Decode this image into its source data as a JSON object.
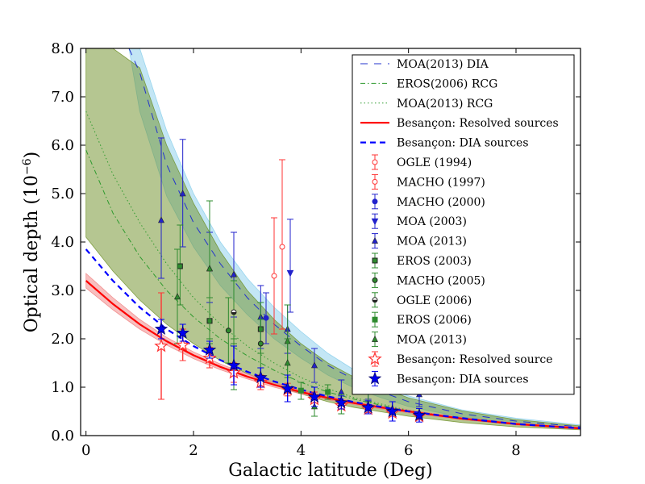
{
  "chart_data": {
    "type": "scatter",
    "title": "",
    "xlabel": "Galactic latitude (Deg)",
    "ylabel": "Optical depth (10",
    "ylabel_exponent": "−6",
    "ylabel_close": ")",
    "xlim": [
      -0.1,
      9.2
    ],
    "ylim": [
      0.0,
      8.0
    ],
    "x_ticks": [
      0,
      2,
      4,
      6,
      8
    ],
    "x_tick_labels": [
      "0",
      "2",
      "4",
      "6",
      "8"
    ],
    "y_ticks": [
      0,
      1,
      2,
      3,
      4,
      5,
      6,
      7,
      8
    ],
    "y_tick_labels": [
      "0.0",
      "1.0",
      "2.0",
      "3.0",
      "4.0",
      "5.0",
      "6.0",
      "7.0",
      "8.0"
    ],
    "grid": false,
    "legend_position": "top-right",
    "model_curves": [
      {
        "name": "MOA(2013) DIA",
        "style": "sparse-dash",
        "color": "#2233cc",
        "x": [
          0.8,
          1.0,
          1.5,
          2.0,
          2.5,
          3.0,
          3.5,
          4.0,
          4.5,
          5.0,
          5.5,
          6.0,
          7.0,
          8.0,
          9.2
        ],
        "y": [
          8.0,
          7.5,
          5.6,
          4.4,
          3.55,
          2.85,
          2.3,
          1.85,
          1.45,
          1.15,
          0.9,
          0.7,
          0.45,
          0.3,
          0.18
        ],
        "band_lo": [
          8.0,
          6.7,
          4.95,
          3.9,
          3.1,
          2.5,
          2.0,
          1.6,
          1.25,
          0.98,
          0.78,
          0.6,
          0.38,
          0.25,
          0.14
        ],
        "band_hi": [
          8.0,
          8.0,
          6.3,
          5.0,
          4.0,
          3.25,
          2.65,
          2.15,
          1.7,
          1.35,
          1.05,
          0.82,
          0.53,
          0.36,
          0.22
        ],
        "band_color": "#87ceeb"
      },
      {
        "name": "EROS(2006) RCG",
        "style": "dash-dot",
        "color": "#2e9a2e",
        "x": [
          0,
          0.5,
          1.0,
          1.5,
          2.0,
          2.5,
          3.0,
          3.5,
          4.0,
          4.5,
          5.0,
          6.0,
          7.0,
          8.0,
          9.2
        ],
        "y": [
          5.9,
          4.6,
          3.7,
          3.0,
          2.45,
          2.0,
          1.65,
          1.35,
          1.1,
          0.9,
          0.75,
          0.5,
          0.34,
          0.23,
          0.15
        ],
        "band_lo": [
          4.1,
          3.4,
          2.8,
          2.3,
          1.9,
          1.55,
          1.28,
          1.05,
          0.86,
          0.7,
          0.58,
          0.4,
          0.27,
          0.18,
          0.12
        ],
        "band_hi": [
          8.0,
          8.0,
          7.6,
          6.0,
          4.8,
          3.8,
          3.0,
          2.4,
          1.9,
          1.5,
          1.2,
          0.78,
          0.51,
          0.33,
          0.2
        ],
        "band_color": "#6b8e23"
      },
      {
        "name": "MOA(2013) RCG",
        "style": "dotted",
        "color": "#2e9a2e",
        "x": [
          0,
          0.5,
          1.0,
          1.5,
          2.0,
          2.5,
          3.0,
          3.5,
          4.0,
          4.5,
          5.0,
          6.0,
          7.0,
          8.0,
          9.2
        ],
        "y": [
          6.7,
          5.4,
          4.4,
          3.55,
          2.85,
          2.3,
          1.85,
          1.5,
          1.2,
          0.97,
          0.78,
          0.52,
          0.35,
          0.23,
          0.15
        ]
      },
      {
        "name": "Besançon: Resolved sources",
        "style": "solid",
        "color": "#ff0000",
        "x": [
          0,
          0.5,
          1.0,
          1.5,
          2.0,
          2.5,
          3.0,
          3.5,
          4.0,
          4.5,
          5.0,
          5.5,
          6.0,
          7.0,
          8.0,
          9.2
        ],
        "y": [
          3.2,
          2.72,
          2.3,
          1.95,
          1.66,
          1.42,
          1.22,
          1.05,
          0.9,
          0.78,
          0.67,
          0.58,
          0.5,
          0.35,
          0.24,
          0.15
        ],
        "band_lo": [
          3.05,
          2.6,
          2.2,
          1.87,
          1.59,
          1.36,
          1.17,
          1.0,
          0.86,
          0.74,
          0.64,
          0.55,
          0.47,
          0.33,
          0.22,
          0.13
        ],
        "band_hi": [
          3.35,
          2.85,
          2.4,
          2.03,
          1.73,
          1.48,
          1.27,
          1.1,
          0.94,
          0.82,
          0.7,
          0.61,
          0.53,
          0.37,
          0.26,
          0.17
        ],
        "band_color": "#f08080"
      },
      {
        "name": "Besançon: DIA sources",
        "style": "dashed",
        "color": "#0000ff",
        "x": [
          0,
          0.5,
          1.0,
          1.5,
          2.0,
          2.5,
          3.0,
          3.5,
          4.0,
          4.5,
          5.0,
          5.5,
          6.0,
          7.0,
          8.0,
          9.2
        ],
        "y": [
          3.85,
          3.2,
          2.65,
          2.2,
          1.85,
          1.56,
          1.32,
          1.12,
          0.95,
          0.81,
          0.69,
          0.59,
          0.5,
          0.36,
          0.24,
          0.15
        ]
      }
    ],
    "observations": [
      {
        "name": "OGLE (1994)",
        "marker": "circle-open",
        "color": "#ff3333",
        "points": [
          {
            "x": 3.5,
            "y": 3.3,
            "lo": 2.1,
            "hi": 4.5
          }
        ]
      },
      {
        "name": "MACHO (1997)",
        "marker": "circle-open",
        "color": "#ff3333",
        "points": [
          {
            "x": 3.65,
            "y": 3.9,
            "lo": 2.2,
            "hi": 5.7
          }
        ]
      },
      {
        "name": "MACHO (2000)",
        "marker": "circle-filled",
        "color": "#2222cc",
        "points": [
          {
            "x": 3.35,
            "y": 2.43,
            "lo": 1.9,
            "hi": 2.95
          }
        ]
      },
      {
        "name": "MOA (2003)",
        "marker": "triangle-down",
        "color": "#2222cc",
        "points": [
          {
            "x": 3.8,
            "y": 3.36,
            "lo": 2.55,
            "hi": 4.47
          }
        ]
      },
      {
        "name": "MOA (2013)",
        "marker": "triangle-up",
        "color": "#2222cc",
        "points": [
          {
            "x": 1.4,
            "y": 4.45,
            "lo": 3.25,
            "hi": 6.15
          },
          {
            "x": 1.8,
            "y": 5.0,
            "lo": 3.9,
            "hi": 6.12
          },
          {
            "x": 2.3,
            "y": 3.45,
            "lo": 2.75,
            "hi": 4.2
          },
          {
            "x": 2.75,
            "y": 3.33,
            "lo": 2.45,
            "hi": 4.2
          },
          {
            "x": 3.25,
            "y": 2.45,
            "lo": 1.8,
            "hi": 3.1
          },
          {
            "x": 3.75,
            "y": 2.2,
            "lo": 1.7,
            "hi": 2.7
          },
          {
            "x": 4.25,
            "y": 1.45,
            "lo": 1.1,
            "hi": 1.8
          },
          {
            "x": 4.75,
            "y": 0.9,
            "lo": 0.7,
            "hi": 1.15
          },
          {
            "x": 5.25,
            "y": 0.95,
            "lo": 0.75,
            "hi": 1.2
          },
          {
            "x": 6.2,
            "y": 0.85,
            "lo": 0.6,
            "hi": 1.1
          }
        ]
      },
      {
        "name": "EROS (2003)",
        "marker": "square-dot",
        "color": "#2e8b2e",
        "points": [
          {
            "x": 1.75,
            "y": 3.5,
            "lo": 2.7,
            "hi": 4.35
          },
          {
            "x": 2.3,
            "y": 2.37,
            "lo": 1.9,
            "hi": 2.85
          },
          {
            "x": 3.25,
            "y": 2.2,
            "lo": 1.7,
            "hi": 2.75
          }
        ]
      },
      {
        "name": "MACHO (2005)",
        "marker": "circle-dot",
        "color": "#2e8b2e",
        "points": [
          {
            "x": 2.65,
            "y": 2.17,
            "lo": 1.5,
            "hi": 2.85
          },
          {
            "x": 3.25,
            "y": 1.9,
            "lo": 1.4,
            "hi": 2.4
          }
        ]
      },
      {
        "name": "OGLE (2006)",
        "marker": "circle-half",
        "color": "#2e8b2e",
        "points": [
          {
            "x": 2.75,
            "y": 2.55,
            "lo": 1.9,
            "hi": 3.2
          }
        ]
      },
      {
        "name": "EROS (2006)",
        "marker": "square-filled",
        "color": "#2e8b2e",
        "points": [
          {
            "x": 4.0,
            "y": 0.93,
            "lo": 0.75,
            "hi": 1.1
          },
          {
            "x": 4.5,
            "y": 0.9,
            "lo": 0.75,
            "hi": 1.05
          }
        ]
      },
      {
        "name": "MOA (2013)",
        "marker": "triangle-up",
        "color": "#2e8b2e",
        "points": [
          {
            "x": 1.7,
            "y": 2.87,
            "lo": 1.9,
            "hi": 3.85
          },
          {
            "x": 2.3,
            "y": 3.45,
            "lo": 2.0,
            "hi": 4.85
          },
          {
            "x": 2.75,
            "y": 1.45,
            "lo": 0.95,
            "hi": 2.0
          },
          {
            "x": 3.75,
            "y": 1.95,
            "lo": 1.2,
            "hi": 2.7
          },
          {
            "x": 3.75,
            "y": 1.5,
            "lo": 1.0,
            "hi": 2.0
          },
          {
            "x": 4.25,
            "y": 0.6,
            "lo": 0.4,
            "hi": 0.8
          },
          {
            "x": 4.75,
            "y": 0.65,
            "lo": 0.45,
            "hi": 0.85
          },
          {
            "x": 5.25,
            "y": 0.95,
            "lo": 0.7,
            "hi": 1.2
          }
        ]
      },
      {
        "name": "Besançon: Resolved source",
        "marker": "star-open",
        "color": "#ff3333",
        "points": [
          {
            "x": 1.4,
            "y": 1.85,
            "lo": 0.75,
            "hi": 2.95
          },
          {
            "x": 1.8,
            "y": 1.87,
            "lo": 1.55,
            "hi": 2.2
          },
          {
            "x": 2.3,
            "y": 1.6,
            "lo": 1.4,
            "hi": 1.82
          },
          {
            "x": 2.75,
            "y": 1.3,
            "lo": 1.1,
            "hi": 1.5
          },
          {
            "x": 3.25,
            "y": 1.1,
            "lo": 0.95,
            "hi": 1.25
          },
          {
            "x": 3.75,
            "y": 0.95,
            "lo": 0.82,
            "hi": 1.08
          },
          {
            "x": 4.25,
            "y": 0.75,
            "lo": 0.6,
            "hi": 0.9
          },
          {
            "x": 4.75,
            "y": 0.62,
            "lo": 0.55,
            "hi": 0.7
          },
          {
            "x": 5.25,
            "y": 0.55,
            "lo": 0.48,
            "hi": 0.62
          },
          {
            "x": 5.7,
            "y": 0.47,
            "lo": 0.4,
            "hi": 0.54
          },
          {
            "x": 6.2,
            "y": 0.4,
            "lo": 0.34,
            "hi": 0.46
          }
        ]
      },
      {
        "name": "Besançon: DIA sources",
        "marker": "star-filled",
        "color": "#0000ee",
        "points": [
          {
            "x": 1.4,
            "y": 2.2,
            "lo": 2.0,
            "hi": 2.4
          },
          {
            "x": 1.8,
            "y": 2.12,
            "lo": 1.95,
            "hi": 2.3
          },
          {
            "x": 2.3,
            "y": 1.77,
            "lo": 1.6,
            "hi": 1.95
          },
          {
            "x": 2.75,
            "y": 1.45,
            "lo": 1.05,
            "hi": 1.85
          },
          {
            "x": 3.25,
            "y": 1.2,
            "lo": 1.0,
            "hi": 1.4
          },
          {
            "x": 3.75,
            "y": 0.97,
            "lo": 0.7,
            "hi": 1.25
          },
          {
            "x": 4.25,
            "y": 0.8,
            "lo": 0.6,
            "hi": 1.0
          },
          {
            "x": 4.75,
            "y": 0.68,
            "lo": 0.55,
            "hi": 0.82
          },
          {
            "x": 5.25,
            "y": 0.58,
            "lo": 0.45,
            "hi": 0.72
          },
          {
            "x": 5.7,
            "y": 0.5,
            "lo": 0.3,
            "hi": 0.7
          },
          {
            "x": 6.2,
            "y": 0.42,
            "lo": 0.28,
            "hi": 0.56
          }
        ]
      }
    ],
    "legend": [
      {
        "label": "MOA(2013) DIA",
        "kind": "line",
        "ref": "MOA(2013) DIA"
      },
      {
        "label": "EROS(2006) RCG",
        "kind": "line",
        "ref": "EROS(2006) RCG"
      },
      {
        "label": "MOA(2013) RCG",
        "kind": "line",
        "ref": "MOA(2013) RCG"
      },
      {
        "label": "Besançon: Resolved sources",
        "kind": "line",
        "ref": "Besançon: Resolved sources"
      },
      {
        "label": "Besançon: DIA sources",
        "kind": "line",
        "ref": "Besançon: DIA sources"
      },
      {
        "label": "OGLE (1994)",
        "kind": "marker",
        "ref": 0
      },
      {
        "label": "MACHO (1997)",
        "kind": "marker",
        "ref": 1
      },
      {
        "label": "MACHO (2000)",
        "kind": "marker",
        "ref": 2
      },
      {
        "label": "MOA (2003)",
        "kind": "marker",
        "ref": 3
      },
      {
        "label": "MOA (2013)",
        "kind": "marker",
        "ref": 4
      },
      {
        "label": "EROS (2003)",
        "kind": "marker",
        "ref": 5
      },
      {
        "label": "MACHO (2005)",
        "kind": "marker",
        "ref": 6
      },
      {
        "label": "OGLE (2006)",
        "kind": "marker",
        "ref": 7
      },
      {
        "label": "EROS (2006)",
        "kind": "marker",
        "ref": 8
      },
      {
        "label": "MOA (2013)",
        "kind": "marker",
        "ref": 9
      },
      {
        "label": "Besançon: Resolved source",
        "kind": "marker",
        "ref": 10
      },
      {
        "label": "Besançon: DIA sources",
        "kind": "marker",
        "ref": 11
      }
    ]
  }
}
